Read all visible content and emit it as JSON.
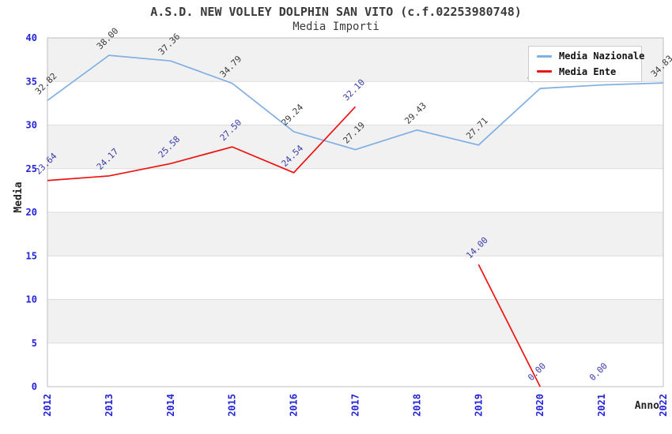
{
  "header": {
    "title": "A.S.D. NEW VOLLEY DOLPHIN SAN VITO (c.f.02253980748)",
    "subtitle": "Media Importi"
  },
  "legend": {
    "items": [
      {
        "label": "Media Nazionale",
        "color": "#7fafe3"
      },
      {
        "label": "Media Ente",
        "color": "#ee1111"
      }
    ]
  },
  "axes": {
    "y_label": "Media",
    "x_label": "Anno",
    "y_ticks": [
      0,
      5,
      10,
      15,
      20,
      25,
      30,
      35,
      40
    ],
    "x_ticks": [
      "2012",
      "2013",
      "2014",
      "2015",
      "2016",
      "2017",
      "2018",
      "2019",
      "2020",
      "2021",
      "2022"
    ],
    "tick_color": "#2323d7",
    "axis_title_color": "#222222"
  },
  "chart_data": {
    "type": "line",
    "title": "A.S.D. NEW VOLLEY DOLPHIN SAN VITO (c.f.02253980748)",
    "subtitle": "Media Importi",
    "xlabel": "Anno",
    "ylabel": "Media",
    "ylim": [
      0,
      40
    ],
    "grid": true,
    "band_color": "#f1f1f1",
    "grid_color": "#dcdcdc",
    "border_color": "#bdbdbd",
    "legend_position": "top-right-inside",
    "x": [
      2012,
      2013,
      2014,
      2015,
      2016,
      2017,
      2018,
      2019,
      2020,
      2021,
      2022
    ],
    "series": [
      {
        "name": "Media Nazionale",
        "color": "#7fafe3",
        "label_color": "#3a3a3a",
        "values": [
          32.82,
          38.0,
          37.36,
          34.79,
          29.24,
          27.19,
          29.43,
          27.71,
          34.2,
          34.6,
          34.83
        ],
        "labels": [
          "32.82",
          "38.00",
          "37.36",
          "34.79",
          "29.24",
          "27.19",
          "29.43",
          "27.71",
          "34.20",
          "34.60",
          "34.83"
        ],
        "breaks": []
      },
      {
        "name": "Media Ente",
        "color": "#ee1111",
        "label_color": "#3b3bab",
        "values": [
          23.64,
          24.17,
          25.58,
          27.5,
          24.54,
          32.1,
          null,
          14.0,
          0.0,
          0.0,
          null
        ],
        "labels": [
          "23.64",
          "24.17",
          "25.58",
          "27.50",
          "24.54",
          "32.10",
          "",
          "14.00",
          "0.00",
          "0.00",
          ""
        ],
        "breaks": [
          9
        ]
      }
    ]
  }
}
